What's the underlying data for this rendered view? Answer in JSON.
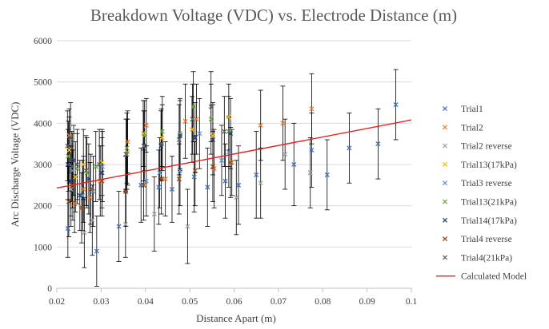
{
  "chart_data": {
    "type": "scatter",
    "title": "Breakdown Voltage (VDC) vs. Electrode Distance (m)",
    "xlabel": "Distance Apart (m)",
    "ylabel": "Arc Discharge Voltage (VDC)",
    "xlim": [
      0.02,
      0.1
    ],
    "ylim": [
      0,
      6000
    ],
    "xticks": [
      "0.02",
      "0.03",
      "0.04",
      "0.05",
      "0.06",
      "0.07",
      "0.08",
      "0.09",
      "0.1"
    ],
    "yticks": [
      "0",
      "1000",
      "2000",
      "3000",
      "4000",
      "5000",
      "6000"
    ],
    "grid": "horizontal",
    "legend_position": "right",
    "series": [
      {
        "name": "Trial1",
        "color": "#4472C4",
        "marker": "x",
        "points": [
          [
            0.0225,
            1450
          ],
          [
            0.029,
            900
          ],
          [
            0.034,
            1500
          ],
          [
            0.039,
            2500
          ],
          [
            0.043,
            2450
          ],
          [
            0.046,
            2400
          ],
          [
            0.051,
            2700
          ],
          [
            0.054,
            2450
          ],
          [
            0.058,
            2600
          ],
          [
            0.061,
            2500
          ],
          [
            0.065,
            2750
          ],
          [
            0.0735,
            3000
          ],
          [
            0.0775,
            3350
          ],
          [
            0.081,
            2750
          ],
          [
            0.086,
            3400
          ],
          [
            0.0925,
            3500
          ],
          [
            0.0965,
            4450
          ]
        ],
        "errors": [
          [
            0.0225,
            700
          ],
          [
            0.029,
            850
          ],
          [
            0.034,
            850
          ],
          [
            0.039,
            900
          ],
          [
            0.043,
            900
          ],
          [
            0.046,
            800
          ],
          [
            0.051,
            850
          ],
          [
            0.054,
            950
          ],
          [
            0.058,
            900
          ],
          [
            0.061,
            950
          ],
          [
            0.065,
            1050
          ],
          [
            0.0735,
            1000
          ],
          [
            0.0775,
            900
          ],
          [
            0.081,
            850
          ],
          [
            0.086,
            850
          ],
          [
            0.0925,
            850
          ],
          [
            0.0965,
            850
          ]
        ]
      },
      {
        "name": "Trial2",
        "color": "#ED7D31",
        "marker": "x",
        "points": [
          [
            0.0228,
            3700
          ],
          [
            0.024,
            2050
          ],
          [
            0.026,
            2400
          ],
          [
            0.0275,
            2200
          ],
          [
            0.0298,
            2600
          ],
          [
            0.036,
            3550
          ],
          [
            0.0402,
            3950
          ],
          [
            0.0445,
            2650
          ],
          [
            0.049,
            4050
          ],
          [
            0.0515,
            4100
          ],
          [
            0.0555,
            2900
          ],
          [
            0.0595,
            3050
          ],
          [
            0.066,
            3950
          ],
          [
            0.071,
            4000
          ],
          [
            0.0775,
            4350
          ]
        ],
        "errors": [
          [
            0.0228,
            650
          ],
          [
            0.024,
            700
          ],
          [
            0.026,
            800
          ],
          [
            0.0275,
            850
          ],
          [
            0.0298,
            850
          ],
          [
            0.036,
            750
          ],
          [
            0.0402,
            650
          ],
          [
            0.0445,
            900
          ],
          [
            0.049,
            900
          ],
          [
            0.0515,
            850
          ],
          [
            0.0555,
            950
          ],
          [
            0.0595,
            800
          ],
          [
            0.066,
            850
          ],
          [
            0.071,
            900
          ],
          [
            0.0775,
            850
          ]
        ]
      },
      {
        "name": "Trial2 reverse",
        "color": "#A5A5A5",
        "marker": "x",
        "points": [
          [
            0.0232,
            2400
          ],
          [
            0.0262,
            1350
          ],
          [
            0.028,
            1650
          ],
          [
            0.0355,
            1550
          ],
          [
            0.042,
            1800
          ],
          [
            0.0495,
            1500
          ],
          [
            0.0605,
            2200
          ],
          [
            0.066,
            2550
          ],
          [
            0.0715,
            3250
          ],
          [
            0.0772,
            2800
          ]
        ],
        "errors": [
          [
            0.0232,
            900
          ],
          [
            0.0262,
            850
          ],
          [
            0.028,
            850
          ],
          [
            0.0355,
            800
          ],
          [
            0.042,
            900
          ],
          [
            0.0495,
            900
          ],
          [
            0.0605,
            900
          ],
          [
            0.066,
            850
          ],
          [
            0.0715,
            850
          ],
          [
            0.0772,
            850
          ]
        ]
      },
      {
        "name": "Trial13(17kPa)",
        "color": "#FFC000",
        "marker": "x",
        "points": [
          [
            0.0228,
            3350
          ],
          [
            0.0242,
            2700
          ],
          [
            0.026,
            3000
          ],
          [
            0.0302,
            3050
          ],
          [
            0.036,
            3300
          ],
          [
            0.0395,
            3750
          ],
          [
            0.0438,
            3650
          ],
          [
            0.0505,
            3850
          ],
          [
            0.0552,
            3700
          ],
          [
            0.0588,
            4150
          ]
        ],
        "errors": [
          [
            0.0228,
            800
          ],
          [
            0.0242,
            850
          ],
          [
            0.026,
            850
          ],
          [
            0.0302,
            800
          ],
          [
            0.036,
            800
          ],
          [
            0.0395,
            800
          ],
          [
            0.0438,
            800
          ],
          [
            0.0505,
            800
          ],
          [
            0.0552,
            800
          ],
          [
            0.0588,
            800
          ]
        ]
      },
      {
        "name": "Trial3 reverse",
        "color": "#5B9BD5",
        "marker": "x",
        "points": [
          [
            0.0235,
            2850
          ],
          [
            0.0258,
            2250
          ],
          [
            0.0282,
            2350
          ],
          [
            0.0303,
            2950
          ],
          [
            0.0358,
            3250
          ],
          [
            0.0402,
            2600
          ],
          [
            0.0432,
            2800
          ],
          [
            0.0478,
            2850
          ],
          [
            0.0522,
            3750
          ],
          [
            0.0572,
            3100
          ],
          [
            0.0588,
            3300
          ]
        ],
        "errors": [
          [
            0.0235,
            900
          ],
          [
            0.0258,
            850
          ],
          [
            0.0282,
            850
          ],
          [
            0.0303,
            850
          ],
          [
            0.0358,
            850
          ],
          [
            0.0402,
            850
          ],
          [
            0.0432,
            850
          ],
          [
            0.0478,
            850
          ],
          [
            0.0522,
            850
          ],
          [
            0.0572,
            850
          ],
          [
            0.0588,
            850
          ]
        ]
      },
      {
        "name": "Trial13(21kPa)",
        "color": "#70AD47",
        "marker": "x",
        "points": [
          [
            0.0226,
            3200
          ],
          [
            0.0246,
            2900
          ],
          [
            0.0268,
            2800
          ],
          [
            0.0288,
            2950
          ],
          [
            0.0358,
            3400
          ],
          [
            0.0398,
            3700
          ],
          [
            0.0438,
            3800
          ],
          [
            0.0478,
            3750
          ],
          [
            0.0508,
            4400
          ],
          [
            0.0548,
            4100
          ],
          [
            0.0588,
            3800
          ]
        ],
        "errors": [
          [
            0.0226,
            850
          ],
          [
            0.0246,
            850
          ],
          [
            0.0268,
            850
          ],
          [
            0.0288,
            850
          ],
          [
            0.0358,
            850
          ],
          [
            0.0398,
            850
          ],
          [
            0.0438,
            850
          ],
          [
            0.0478,
            850
          ],
          [
            0.0508,
            850
          ],
          [
            0.0548,
            850
          ],
          [
            0.0588,
            850
          ]
        ]
      },
      {
        "name": "Trial14(17kPa)",
        "color": "#264478",
        "marker": "x",
        "points": [
          [
            0.0225,
            3000
          ],
          [
            0.0232,
            2600
          ],
          [
            0.0238,
            3100
          ],
          [
            0.0252,
            2250
          ],
          [
            0.0272,
            2650
          ],
          [
            0.0302,
            2800
          ],
          [
            0.0356,
            2350
          ],
          [
            0.0398,
            3450
          ],
          [
            0.0435,
            3450
          ],
          [
            0.0478,
            3700
          ],
          [
            0.0512,
            3650
          ],
          [
            0.0552,
            3600
          ],
          [
            0.0592,
            3750
          ]
        ],
        "errors": [
          [
            0.0225,
            850
          ],
          [
            0.0232,
            850
          ],
          [
            0.0238,
            850
          ],
          [
            0.0252,
            850
          ],
          [
            0.0272,
            850
          ],
          [
            0.0302,
            850
          ],
          [
            0.0356,
            850
          ],
          [
            0.0398,
            850
          ],
          [
            0.0435,
            850
          ],
          [
            0.0478,
            850
          ],
          [
            0.0512,
            850
          ],
          [
            0.0552,
            850
          ],
          [
            0.0592,
            850
          ]
        ]
      },
      {
        "name": "Trial4 reverse",
        "color": "#9E480E",
        "marker": "x",
        "points": [
          [
            0.0227,
            2100
          ],
          [
            0.0236,
            2500
          ],
          [
            0.0256,
            1950
          ],
          [
            0.0276,
            2400
          ],
          [
            0.0302,
            2600
          ],
          [
            0.0355,
            2350
          ],
          [
            0.0396,
            2500
          ],
          [
            0.0436,
            2650
          ],
          [
            0.0476,
            2650
          ],
          [
            0.0512,
            2850
          ],
          [
            0.0552,
            2950
          ],
          [
            0.0592,
            3050
          ]
        ],
        "errors": [
          [
            0.0227,
            850
          ],
          [
            0.0236,
            850
          ],
          [
            0.0256,
            850
          ],
          [
            0.0276,
            850
          ],
          [
            0.0302,
            850
          ],
          [
            0.0355,
            850
          ],
          [
            0.0396,
            850
          ],
          [
            0.0436,
            850
          ],
          [
            0.0476,
            850
          ],
          [
            0.0512,
            850
          ],
          [
            0.0552,
            850
          ],
          [
            0.0592,
            850
          ]
        ]
      },
      {
        "name": "Trial4(21kPa)",
        "color": "#636363",
        "marker": "x",
        "points": [
          [
            0.0224,
            3450
          ],
          [
            0.0231,
            3650
          ],
          [
            0.0234,
            2950
          ],
          [
            0.0246,
            3000
          ],
          [
            0.0266,
            2850
          ],
          [
            0.0296,
            3000
          ],
          [
            0.0356,
            3250
          ],
          [
            0.0396,
            3450
          ],
          [
            0.0436,
            3500
          ],
          [
            0.0476,
            3600
          ],
          [
            0.0506,
            4100
          ],
          [
            0.0548,
            4400
          ],
          [
            0.0578,
            3800
          ]
        ],
        "errors": [
          [
            0.0224,
            850
          ],
          [
            0.0231,
            850
          ],
          [
            0.0234,
            850
          ],
          [
            0.0246,
            850
          ],
          [
            0.0266,
            850
          ],
          [
            0.0296,
            850
          ],
          [
            0.0356,
            850
          ],
          [
            0.0396,
            850
          ],
          [
            0.0436,
            850
          ],
          [
            0.0476,
            850
          ],
          [
            0.0506,
            850
          ],
          [
            0.0548,
            850
          ],
          [
            0.0578,
            850
          ]
        ]
      }
    ],
    "model": {
      "name": "Calculated Model",
      "color": "#E81F1F",
      "x": [
        0.02,
        0.1
      ],
      "y": [
        2430,
        4080
      ]
    }
  }
}
